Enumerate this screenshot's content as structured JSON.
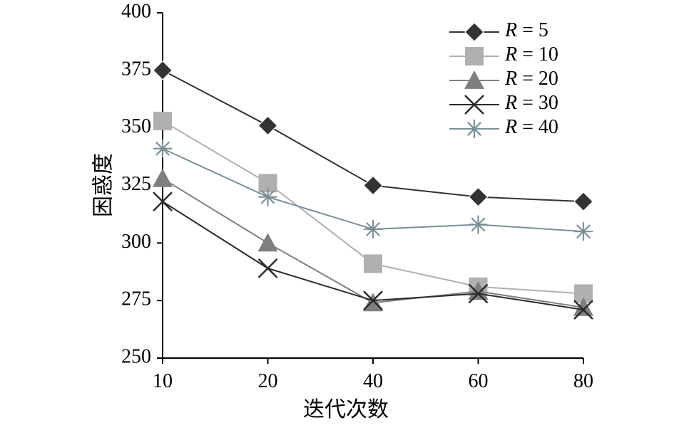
{
  "chart_data": {
    "type": "line",
    "title": "",
    "xlabel": "迭代次数",
    "ylabel": "困惑度",
    "categories": [
      "10",
      "20",
      "40",
      "60",
      "80"
    ],
    "ylim": [
      250,
      400
    ],
    "yticks": [
      "250",
      "275",
      "300",
      "325",
      "350",
      "375",
      "400"
    ],
    "grid": false,
    "legend_position": "top-right",
    "legend_var": "R",
    "legend_eq": "=",
    "series": [
      {
        "name": "R = 5",
        "param": "5",
        "marker": "diamond",
        "color": "#333333",
        "values": [
          375,
          351,
          325,
          320,
          318
        ]
      },
      {
        "name": "R = 10",
        "param": "10",
        "marker": "square",
        "color": "#b0b0b0",
        "values": [
          353,
          326,
          291,
          281,
          278
        ]
      },
      {
        "name": "R = 20",
        "param": "20",
        "marker": "triangle",
        "color": "#7f7f7f",
        "values": [
          328,
          300,
          274,
          279,
          272
        ]
      },
      {
        "name": "R = 30",
        "param": "30",
        "marker": "x",
        "color": "#2b2b2b",
        "values": [
          318,
          289,
          275,
          278,
          271
        ]
      },
      {
        "name": "R = 40",
        "param": "40",
        "marker": "star",
        "color": "#7a9096",
        "values": [
          341,
          320,
          306,
          308,
          305
        ]
      }
    ]
  }
}
